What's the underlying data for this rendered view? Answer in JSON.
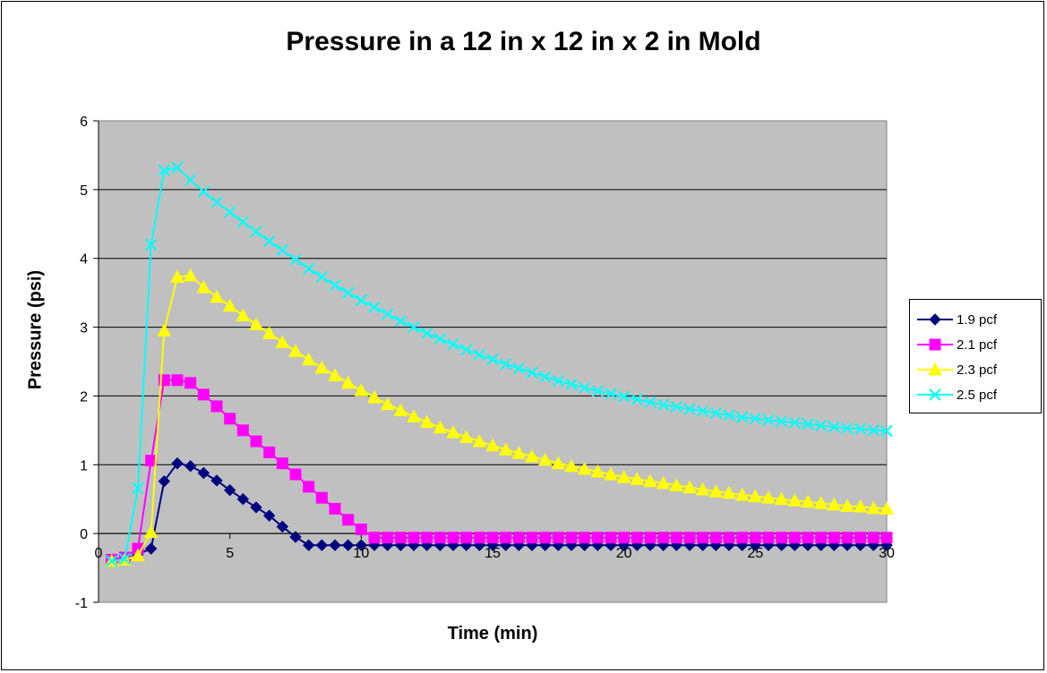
{
  "chart_data": {
    "type": "line",
    "title": "Pressure in a 12 in x 12 in x 2 in Mold",
    "xlabel": "Time (min)",
    "ylabel": "Pressure (psi)",
    "xlim": [
      0,
      30
    ],
    "ylim": [
      -1,
      6
    ],
    "xticks": [
      0,
      5,
      10,
      15,
      20,
      25,
      30
    ],
    "yticks": [
      -1,
      0,
      1,
      2,
      3,
      4,
      5,
      6
    ],
    "grid": true,
    "legend_position": "right",
    "plot_background": "#C0C0C0",
    "series": [
      {
        "name": "1.9 pcf",
        "color": "#000080",
        "marker": "diamond",
        "points": [
          [
            0.5,
            -0.4
          ],
          [
            1,
            -0.38
          ],
          [
            1.5,
            -0.3
          ],
          [
            2,
            -0.22
          ],
          [
            2.5,
            0.76
          ],
          [
            3,
            1.02
          ],
          [
            3.5,
            0.98
          ],
          [
            4,
            0.88
          ],
          [
            4.5,
            0.77
          ],
          [
            5,
            0.63
          ],
          [
            5.5,
            0.5
          ],
          [
            6,
            0.38
          ],
          [
            6.5,
            0.26
          ],
          [
            7,
            0.1
          ],
          [
            7.5,
            -0.05
          ],
          [
            8,
            -0.17
          ],
          [
            8.5,
            -0.17
          ],
          [
            9,
            -0.17
          ],
          [
            9.5,
            -0.17
          ],
          [
            10,
            -0.17
          ],
          [
            10.5,
            -0.17
          ],
          [
            11,
            -0.17
          ],
          [
            11.5,
            -0.17
          ],
          [
            12,
            -0.17
          ],
          [
            12.5,
            -0.17
          ],
          [
            13,
            -0.17
          ],
          [
            13.5,
            -0.17
          ],
          [
            14,
            -0.17
          ],
          [
            14.5,
            -0.17
          ],
          [
            15,
            -0.17
          ],
          [
            15.5,
            -0.17
          ],
          [
            16,
            -0.17
          ],
          [
            16.5,
            -0.17
          ],
          [
            17,
            -0.17
          ],
          [
            17.5,
            -0.17
          ],
          [
            18,
            -0.17
          ],
          [
            18.5,
            -0.17
          ],
          [
            19,
            -0.17
          ],
          [
            19.5,
            -0.17
          ],
          [
            20,
            -0.17
          ],
          [
            20.5,
            -0.17
          ],
          [
            21,
            -0.17
          ],
          [
            21.5,
            -0.17
          ],
          [
            22,
            -0.17
          ],
          [
            22.5,
            -0.17
          ],
          [
            23,
            -0.17
          ],
          [
            23.5,
            -0.17
          ],
          [
            24,
            -0.17
          ],
          [
            24.5,
            -0.17
          ],
          [
            25,
            -0.17
          ],
          [
            25.5,
            -0.17
          ],
          [
            26,
            -0.17
          ],
          [
            26.5,
            -0.17
          ],
          [
            27,
            -0.17
          ],
          [
            27.5,
            -0.17
          ],
          [
            28,
            -0.17
          ],
          [
            28.5,
            -0.17
          ],
          [
            29,
            -0.17
          ],
          [
            29.5,
            -0.17
          ],
          [
            30,
            -0.17
          ]
        ]
      },
      {
        "name": "2.1 pcf",
        "color": "#FF00FF",
        "marker": "square",
        "points": [
          [
            0.5,
            -0.38
          ],
          [
            1,
            -0.35
          ],
          [
            1.5,
            -0.22
          ],
          [
            2,
            1.06
          ],
          [
            2.5,
            2.23
          ],
          [
            3,
            2.23
          ],
          [
            3.5,
            2.19
          ],
          [
            4,
            2.02
          ],
          [
            4.5,
            1.85
          ],
          [
            5,
            1.67
          ],
          [
            5.5,
            1.5
          ],
          [
            6,
            1.34
          ],
          [
            6.5,
            1.18
          ],
          [
            7,
            1.02
          ],
          [
            7.5,
            0.86
          ],
          [
            8,
            0.68
          ],
          [
            8.5,
            0.52
          ],
          [
            9,
            0.36
          ],
          [
            9.5,
            0.2
          ],
          [
            10,
            0.06
          ],
          [
            10.5,
            -0.06
          ],
          [
            11,
            -0.06
          ],
          [
            11.5,
            -0.06
          ],
          [
            12,
            -0.06
          ],
          [
            12.5,
            -0.06
          ],
          [
            13,
            -0.06
          ],
          [
            13.5,
            -0.06
          ],
          [
            14,
            -0.06
          ],
          [
            14.5,
            -0.06
          ],
          [
            15,
            -0.06
          ],
          [
            15.5,
            -0.06
          ],
          [
            16,
            -0.06
          ],
          [
            16.5,
            -0.06
          ],
          [
            17,
            -0.06
          ],
          [
            17.5,
            -0.06
          ],
          [
            18,
            -0.06
          ],
          [
            18.5,
            -0.06
          ],
          [
            19,
            -0.06
          ],
          [
            19.5,
            -0.06
          ],
          [
            20,
            -0.06
          ],
          [
            20.5,
            -0.06
          ],
          [
            21,
            -0.06
          ],
          [
            21.5,
            -0.06
          ],
          [
            22,
            -0.06
          ],
          [
            22.5,
            -0.06
          ],
          [
            23,
            -0.06
          ],
          [
            23.5,
            -0.06
          ],
          [
            24,
            -0.06
          ],
          [
            24.5,
            -0.06
          ],
          [
            25,
            -0.06
          ],
          [
            25.5,
            -0.06
          ],
          [
            26,
            -0.06
          ],
          [
            26.5,
            -0.06
          ],
          [
            27,
            -0.06
          ],
          [
            27.5,
            -0.06
          ],
          [
            28,
            -0.06
          ],
          [
            28.5,
            -0.06
          ],
          [
            29,
            -0.06
          ],
          [
            29.5,
            -0.06
          ],
          [
            30,
            -0.06
          ]
        ]
      },
      {
        "name": "2.3 pcf",
        "color": "#FFFF00",
        "marker": "triangle",
        "points": [
          [
            0.5,
            -0.4
          ],
          [
            1,
            -0.38
          ],
          [
            1.5,
            -0.32
          ],
          [
            2,
            0.02
          ],
          [
            2.5,
            2.95
          ],
          [
            3,
            3.73
          ],
          [
            3.5,
            3.75
          ],
          [
            4,
            3.58
          ],
          [
            4.5,
            3.44
          ],
          [
            5,
            3.31
          ],
          [
            5.5,
            3.17
          ],
          [
            6,
            3.04
          ],
          [
            6.5,
            2.91
          ],
          [
            7,
            2.78
          ],
          [
            7.5,
            2.65
          ],
          [
            8,
            2.53
          ],
          [
            8.5,
            2.41
          ],
          [
            9,
            2.3
          ],
          [
            9.5,
            2.19
          ],
          [
            10,
            2.08
          ],
          [
            10.5,
            1.98
          ],
          [
            11,
            1.88
          ],
          [
            11.5,
            1.79
          ],
          [
            12,
            1.7
          ],
          [
            12.5,
            1.62
          ],
          [
            13,
            1.54
          ],
          [
            13.5,
            1.47
          ],
          [
            14,
            1.4
          ],
          [
            14.5,
            1.34
          ],
          [
            15,
            1.28
          ],
          [
            15.5,
            1.22
          ],
          [
            16,
            1.17
          ],
          [
            16.5,
            1.12
          ],
          [
            17,
            1.07
          ],
          [
            17.5,
            1.02
          ],
          [
            18,
            0.98
          ],
          [
            18.5,
            0.94
          ],
          [
            19,
            0.9
          ],
          [
            19.5,
            0.86
          ],
          [
            20,
            0.82
          ],
          [
            20.5,
            0.79
          ],
          [
            21,
            0.76
          ],
          [
            21.5,
            0.73
          ],
          [
            22,
            0.7
          ],
          [
            22.5,
            0.67
          ],
          [
            23,
            0.64
          ],
          [
            23.5,
            0.61
          ],
          [
            24,
            0.59
          ],
          [
            24.5,
            0.56
          ],
          [
            25,
            0.54
          ],
          [
            25.5,
            0.52
          ],
          [
            26,
            0.5
          ],
          [
            26.5,
            0.48
          ],
          [
            27,
            0.46
          ],
          [
            27.5,
            0.44
          ],
          [
            28,
            0.42
          ],
          [
            28.5,
            0.4
          ],
          [
            29,
            0.39
          ],
          [
            29.5,
            0.37
          ],
          [
            30,
            0.36
          ]
        ]
      },
      {
        "name": "2.5 pcf",
        "color": "#00FFFF",
        "marker": "x",
        "points": [
          [
            0.5,
            -0.4
          ],
          [
            1,
            -0.37
          ],
          [
            1.5,
            0.66
          ],
          [
            2,
            4.2
          ],
          [
            2.5,
            5.28
          ],
          [
            3,
            5.32
          ],
          [
            3.5,
            5.14
          ],
          [
            4,
            4.97
          ],
          [
            4.5,
            4.82
          ],
          [
            5,
            4.67
          ],
          [
            5.5,
            4.53
          ],
          [
            6,
            4.39
          ],
          [
            6.5,
            4.25
          ],
          [
            7,
            4.12
          ],
          [
            7.5,
            3.98
          ],
          [
            8,
            3.85
          ],
          [
            8.5,
            3.73
          ],
          [
            9,
            3.61
          ],
          [
            9.5,
            3.5
          ],
          [
            10,
            3.39
          ],
          [
            10.5,
            3.29
          ],
          [
            11,
            3.19
          ],
          [
            11.5,
            3.09
          ],
          [
            12,
            3.0
          ],
          [
            12.5,
            2.91
          ],
          [
            13,
            2.83
          ],
          [
            13.5,
            2.75
          ],
          [
            14,
            2.67
          ],
          [
            14.5,
            2.6
          ],
          [
            15,
            2.53
          ],
          [
            15.5,
            2.46
          ],
          [
            16,
            2.4
          ],
          [
            16.5,
            2.34
          ],
          [
            17,
            2.28
          ],
          [
            17.5,
            2.22
          ],
          [
            18,
            2.17
          ],
          [
            18.5,
            2.12
          ],
          [
            19,
            2.07
          ],
          [
            19.5,
            2.03
          ],
          [
            20,
            1.99
          ],
          [
            20.5,
            1.95
          ],
          [
            21,
            1.91
          ],
          [
            21.5,
            1.87
          ],
          [
            22,
            1.84
          ],
          [
            22.5,
            1.81
          ],
          [
            23,
            1.78
          ],
          [
            23.5,
            1.75
          ],
          [
            24,
            1.72
          ],
          [
            24.5,
            1.69
          ],
          [
            25,
            1.67
          ],
          [
            25.5,
            1.65
          ],
          [
            26,
            1.63
          ],
          [
            26.5,
            1.61
          ],
          [
            27,
            1.59
          ],
          [
            27.5,
            1.57
          ],
          [
            28,
            1.55
          ],
          [
            28.5,
            1.53
          ],
          [
            29,
            1.52
          ],
          [
            29.5,
            1.5
          ],
          [
            30,
            1.49
          ]
        ]
      }
    ]
  }
}
